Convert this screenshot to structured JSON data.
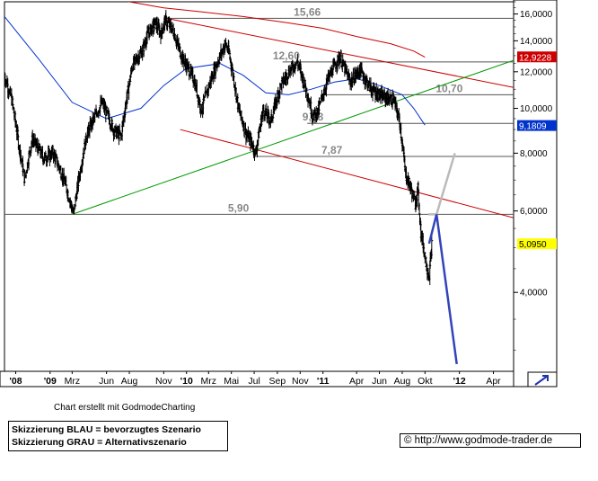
{
  "chart_data": {
    "type": "line",
    "subtype": "daily-ohlc-bars",
    "y_scale": "log",
    "ylim": [
      2700,
      17000
    ],
    "xlim": [
      "2008-09-01",
      "2012-05-25"
    ],
    "grid": false,
    "y_ticks": [
      {
        "value": 16000,
        "label": "16,0000"
      },
      {
        "value": 14000,
        "label": "14,0000"
      },
      {
        "value": 12000,
        "label": "12,0000"
      },
      {
        "value": 10000,
        "label": "10,0000"
      },
      {
        "value": 8000,
        "label": "8,0000"
      },
      {
        "value": 6000,
        "label": "6,0000"
      },
      {
        "value": 4000,
        "label": "4,0000"
      }
    ],
    "x_ticks": [
      {
        "date": "2008-10-01",
        "label": "'08"
      },
      {
        "date": "2009-01-01",
        "label": "'09"
      },
      {
        "date": "2009-03-01",
        "label": "Mrz"
      },
      {
        "date": "2009-06-01",
        "label": "Jun"
      },
      {
        "date": "2009-08-01",
        "label": "Aug"
      },
      {
        "date": "2009-11-01",
        "label": "Nov"
      },
      {
        "date": "2010-01-01",
        "label": "'10"
      },
      {
        "date": "2010-03-01",
        "label": "Mrz"
      },
      {
        "date": "2010-05-01",
        "label": "Mai"
      },
      {
        "date": "2010-07-01",
        "label": "Jul"
      },
      {
        "date": "2010-09-01",
        "label": "Sep"
      },
      {
        "date": "2010-11-01",
        "label": "Nov"
      },
      {
        "date": "2011-01-01",
        "label": "'11"
      },
      {
        "date": "2011-04-01",
        "label": "Apr"
      },
      {
        "date": "2011-06-01",
        "label": "Jun"
      },
      {
        "date": "2011-08-01",
        "label": "Aug"
      },
      {
        "date": "2011-10-01",
        "label": "Okt"
      },
      {
        "date": "2012-01-01",
        "label": "'12"
      },
      {
        "date": "2012-04-01",
        "label": "Apr"
      }
    ],
    "price_path": [
      [
        "2008-09-01",
        11800
      ],
      [
        "2008-09-20",
        10500
      ],
      [
        "2008-10-10",
        8300
      ],
      [
        "2008-10-25",
        7000
      ],
      [
        "2008-11-15",
        8600
      ],
      [
        "2008-12-15",
        7800
      ],
      [
        "2009-01-10",
        8000
      ],
      [
        "2009-02-10",
        6900
      ],
      [
        "2009-03-05",
        5900
      ],
      [
        "2009-04-10",
        8800
      ],
      [
        "2009-05-20",
        10300
      ],
      [
        "2009-06-20",
        9000
      ],
      [
        "2009-07-10",
        8700
      ],
      [
        "2009-08-10",
        12400
      ],
      [
        "2009-09-05",
        13300
      ],
      [
        "2009-09-20",
        14500
      ],
      [
        "2009-10-10",
        15300
      ],
      [
        "2009-10-25",
        14500
      ],
      [
        "2009-11-05",
        15500
      ],
      [
        "2009-11-25",
        14800
      ],
      [
        "2009-12-20",
        12900
      ],
      [
        "2010-01-20",
        11600
      ],
      [
        "2010-02-10",
        9900
      ],
      [
        "2010-03-15",
        12000
      ],
      [
        "2010-04-15",
        13800
      ],
      [
        "2010-04-25",
        13200
      ],
      [
        "2010-05-20",
        10000
      ],
      [
        "2010-06-10",
        8800
      ],
      [
        "2010-06-25",
        8400
      ],
      [
        "2010-07-05",
        8000
      ],
      [
        "2010-07-25",
        9900
      ],
      [
        "2010-08-15",
        9400
      ],
      [
        "2010-09-10",
        11200
      ],
      [
        "2010-10-05",
        12100
      ],
      [
        "2010-10-25",
        12600
      ],
      [
        "2010-11-20",
        10800
      ],
      [
        "2010-12-05",
        9600
      ],
      [
        "2010-12-20",
        9900
      ],
      [
        "2011-01-15",
        11600
      ],
      [
        "2011-02-15",
        12900
      ],
      [
        "2011-03-15",
        11400
      ],
      [
        "2011-04-10",
        12100
      ],
      [
        "2011-05-10",
        11000
      ],
      [
        "2011-06-10",
        10600
      ],
      [
        "2011-07-10",
        10400
      ],
      [
        "2011-07-25",
        9400
      ],
      [
        "2011-08-10",
        7200
      ],
      [
        "2011-08-25",
        6700
      ],
      [
        "2011-09-05",
        6200
      ],
      [
        "2011-09-12",
        6700
      ],
      [
        "2011-09-20",
        5400
      ],
      [
        "2011-10-05",
        4600
      ],
      [
        "2011-10-12",
        4300
      ],
      [
        "2011-10-20",
        5100
      ]
    ],
    "moving_averages": [
      {
        "color": "#0033cc",
        "points": [
          [
            "2008-09-01",
            15800
          ],
          [
            "2008-12-01",
            12800
          ],
          [
            "2009-03-01",
            10300
          ],
          [
            "2009-06-01",
            9500
          ],
          [
            "2009-09-01",
            10000
          ],
          [
            "2009-11-01",
            11200
          ],
          [
            "2010-01-01",
            12200
          ],
          [
            "2010-04-01",
            12500
          ],
          [
            "2010-06-01",
            11800
          ],
          [
            "2010-08-01",
            10800
          ],
          [
            "2010-10-01",
            10700
          ],
          [
            "2010-12-01",
            11000
          ],
          [
            "2011-02-01",
            11400
          ],
          [
            "2011-04-01",
            11600
          ],
          [
            "2011-06-01",
            11200
          ],
          [
            "2011-08-01",
            10700
          ],
          [
            "2011-09-01",
            10000
          ],
          [
            "2011-10-01",
            9200
          ]
        ]
      },
      {
        "color": "#cc0000",
        "points": [
          [
            "2009-05-01",
            17800
          ],
          [
            "2009-08-01",
            17000
          ],
          [
            "2009-11-01",
            16500
          ],
          [
            "2010-02-01",
            16200
          ],
          [
            "2010-06-01",
            15800
          ],
          [
            "2010-10-01",
            15300
          ],
          [
            "2011-01-01",
            14900
          ],
          [
            "2011-04-01",
            14300
          ],
          [
            "2011-07-01",
            13800
          ],
          [
            "2011-09-01",
            13300
          ],
          [
            "2011-10-01",
            12900
          ]
        ]
      }
    ],
    "red_line_upper_right": [
      [
        "2012-03-01",
        18200
      ],
      [
        "2012-05-25",
        17000
      ]
    ],
    "trendlines": [
      {
        "color": "#cc0000",
        "from": [
          "2009-11-01",
          15700
        ],
        "to": [
          "2012-05-25",
          11100
        ]
      },
      {
        "color": "#cc0000",
        "from": [
          "2009-12-15",
          9000
        ],
        "to": [
          "2012-05-25",
          5800
        ]
      },
      {
        "color": "#009900",
        "from": [
          "2009-03-01",
          5900
        ],
        "to": [
          "2012-05-25",
          12700
        ]
      }
    ],
    "horizontal_levels": [
      {
        "value": 15660,
        "label": "15,66",
        "from": "2009-11-01",
        "label_date": "2010-11-20"
      },
      {
        "value": 12600,
        "label": "12,60",
        "from": "2010-09-15",
        "label_date": "2010-09-25"
      },
      {
        "value": 10700,
        "label": "10,70",
        "from": "2011-01-01",
        "label_date": "2011-12-05"
      },
      {
        "value": 9280,
        "label": "9,28",
        "from": "2010-11-20",
        "label_date": "2010-12-05"
      },
      {
        "value": 7870,
        "label": "7,87",
        "from": "2010-07-01",
        "label_date": "2011-01-25"
      },
      {
        "value": 5900,
        "label": "5,90",
        "from": "2008-09-01",
        "label_date": "2010-05-20"
      }
    ],
    "scenario_blue": {
      "color": "#3344bb",
      "points": [
        [
          "2011-10-12",
          5100
        ],
        [
          "2011-11-01",
          5900
        ],
        [
          "2011-12-25",
          2800
        ]
      ]
    },
    "scenario_grey": {
      "color": "#bbbbbb",
      "points": [
        [
          "2011-10-10",
          5900
        ],
        [
          "2011-11-01",
          5900
        ],
        [
          "2011-12-20",
          8000
        ]
      ]
    },
    "price_tags": [
      {
        "value": 12922,
        "label": "12,9228",
        "bg": "#cc0000",
        "fg": "#ffffff"
      },
      {
        "value": 9181,
        "label": "9,1809",
        "bg": "#0033cc",
        "fg": "#ffffff"
      },
      {
        "value": 5095,
        "label": "5,0950",
        "bg": "#ffff00",
        "fg": "#000000"
      }
    ]
  },
  "footer": {
    "credit": "Chart erstellt mit GodmodeCharting",
    "legend_blue": "Skizzierung BLAU = bevorzugtes Szenario",
    "legend_grey": "Skizzierung GRAU = Alternativszenario",
    "url": "© http://www.godmode-trader.de"
  }
}
